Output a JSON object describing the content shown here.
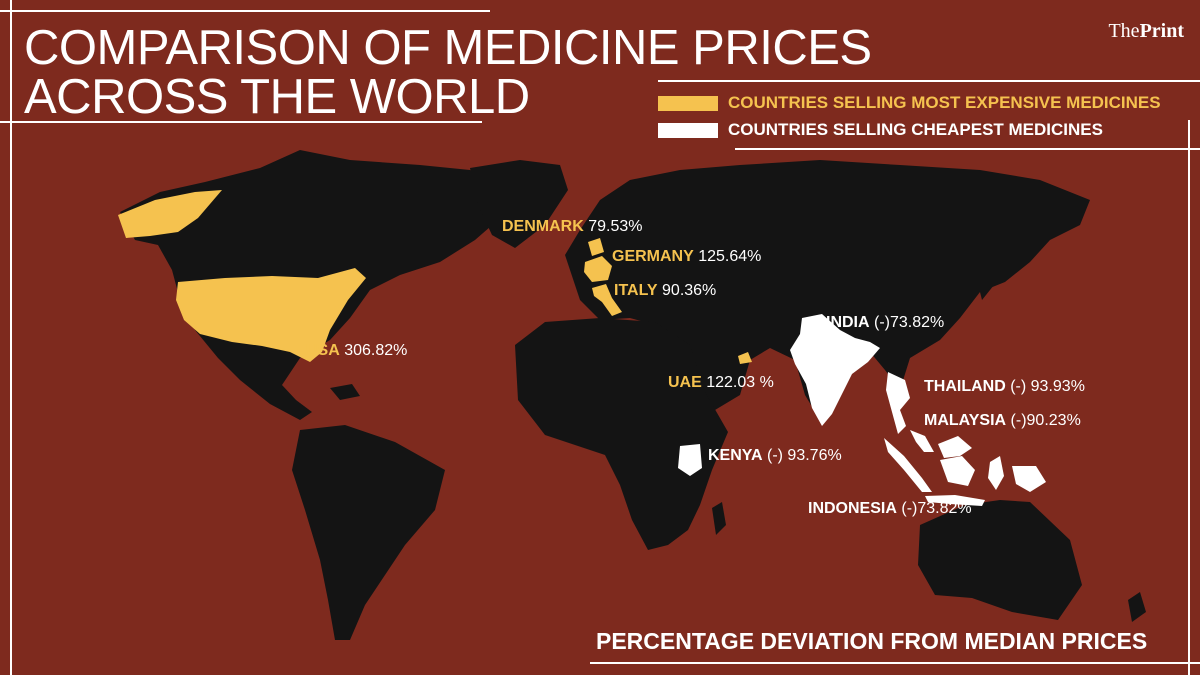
{
  "title": {
    "line1": "COMPARISON OF MEDICINE PRICES",
    "line2": "ACROSS THE WORLD"
  },
  "brand": {
    "prefix": "The",
    "name": "Print"
  },
  "legend": [
    {
      "label": "COUNTRIES SELLING MOST EXPENSIVE MEDICINES",
      "color": "#f5c24f"
    },
    {
      "label": "COUNTRIES SELLING CHEAPEST MEDICINES",
      "color": "#ffffff"
    }
  ],
  "countries": [
    {
      "name": "DENMARK",
      "value": "79.53%",
      "group": "expensive"
    },
    {
      "name": "GERMANY",
      "value": "125.64%",
      "group": "expensive"
    },
    {
      "name": "ITALY",
      "value": "90.36%",
      "group": "expensive"
    },
    {
      "name": "USA",
      "value": "306.82%",
      "group": "expensive"
    },
    {
      "name": "UAE",
      "value": "122.03 %",
      "group": "expensive"
    },
    {
      "name": "INDIA",
      "value": "(-)73.82%",
      "group": "cheapest"
    },
    {
      "name": "THAILAND",
      "value": "(-) 93.93%",
      "group": "cheapest"
    },
    {
      "name": "MALAYSIA",
      "value": "(-)90.23%",
      "group": "cheapest"
    },
    {
      "name": "KENYA",
      "value": "(-) 93.76%",
      "group": "cheapest"
    },
    {
      "name": "INDONESIA",
      "value": "(-)73.82%",
      "group": "cheapest"
    }
  ],
  "footer": "PERCENTAGE DEVIATION FROM MEDIAN PRICES",
  "colors": {
    "background": "#7e2a1e",
    "land": "#141414",
    "expensive": "#f5c24f",
    "cheapest": "#ffffff"
  }
}
